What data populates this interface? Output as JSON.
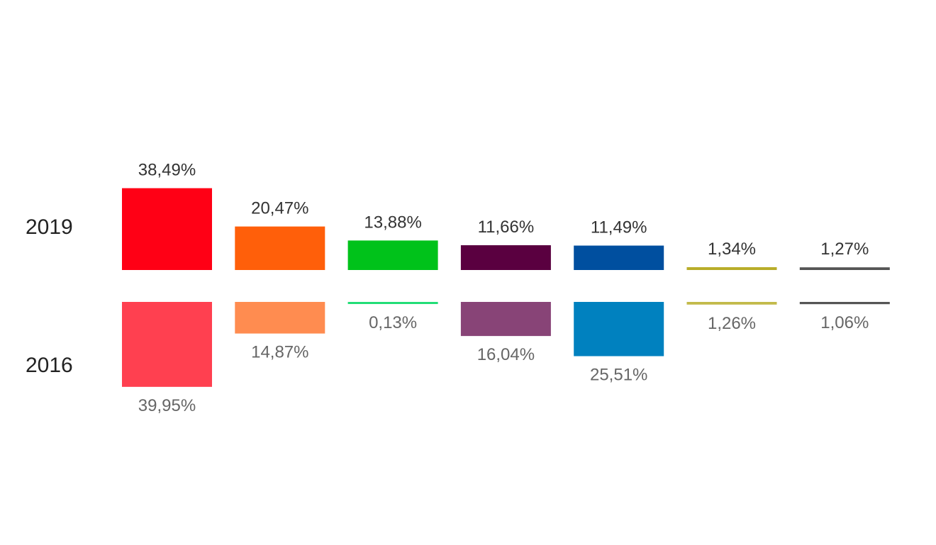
{
  "chart_data": {
    "type": "bar",
    "title": "",
    "xlabel": "",
    "ylabel": "",
    "categories": [
      "",
      "",
      "",
      "",
      "",
      "",
      ""
    ],
    "series": [
      {
        "name": "2019",
        "values": [
          38.49,
          20.47,
          13.88,
          11.66,
          11.49,
          1.34,
          1.27
        ],
        "labels": [
          "38,49%",
          "20,47%",
          "13,88%",
          "11,66%",
          "11,49%",
          "1,34%",
          "1,27%"
        ],
        "colors": [
          "#ff0015",
          "#ff5f0a",
          "#00c21a",
          "#5a0040",
          "#004f9f",
          "#b8ad2a",
          "#555555"
        ]
      },
      {
        "name": "2016",
        "values": [
          39.95,
          14.87,
          0.13,
          16.04,
          25.51,
          1.26,
          1.06
        ],
        "labels": [
          "39,95%",
          "14,87%",
          "0,13%",
          "16,04%",
          "25,51%",
          "1,26%",
          "1,06%"
        ],
        "colors": [
          "#ff4050",
          "#ff8c50",
          "#22dd77",
          "#884477",
          "#0081bf",
          "#c2ba4a",
          "#555555"
        ]
      }
    ],
    "ylim": [
      0,
      40
    ],
    "grid": false,
    "legend": "left"
  }
}
